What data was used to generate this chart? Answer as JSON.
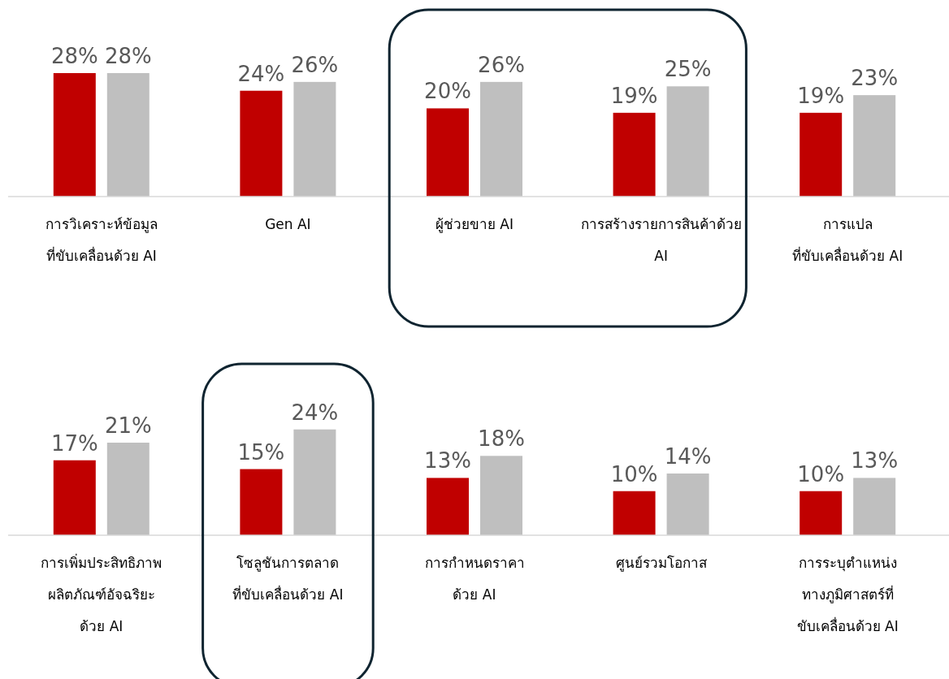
{
  "chart_data": [
    {
      "type": "bar",
      "categories": [
        "การวิเคราะห์ข้อมูล\nที่ขับเคลื่อนด้วย AI",
        "Gen AI",
        "ผู้ช่วยขาย AI",
        "การสร้างรายการสินค้าด้วย\nAI",
        "การแปล\nที่ขับเคลื่อนด้วย AI"
      ],
      "series": [
        {
          "color": "#c00000",
          "values": [
            28,
            24,
            20,
            19,
            19
          ],
          "value_labels": [
            "28%",
            "24%",
            "20%",
            "19%",
            "19%"
          ]
        },
        {
          "color": "#bfbfbf",
          "values": [
            28,
            26,
            26,
            25,
            23
          ],
          "value_labels": [
            "28%",
            "26%",
            "26%",
            "25%",
            "23%"
          ]
        }
      ]
    },
    {
      "type": "bar",
      "categories": [
        "การเพิ่มประสิทธิภาพ\nผลิตภัณฑ์อัจฉริยะ\nด้วย AI",
        "โซลูชันการตลาด\nที่ขับเคลื่อนด้วย AI",
        "การกำหนดราคา\nด้วย AI",
        "ศูนย์รวมโอกาส",
        "การระบุตำแหน่ง\nทางภูมิศาสตร์ที่\nขับเคลื่อนด้วย AI"
      ],
      "series": [
        {
          "color": "#c00000",
          "values": [
            17,
            15,
            13,
            10,
            10
          ],
          "value_labels": [
            "17%",
            "15%",
            "13%",
            "10%",
            "10%"
          ]
        },
        {
          "color": "#bfbfbf",
          "values": [
            21,
            24,
            18,
            14,
            13
          ],
          "value_labels": [
            "21%",
            "24%",
            "18%",
            "14%",
            "13%"
          ]
        }
      ]
    }
  ]
}
